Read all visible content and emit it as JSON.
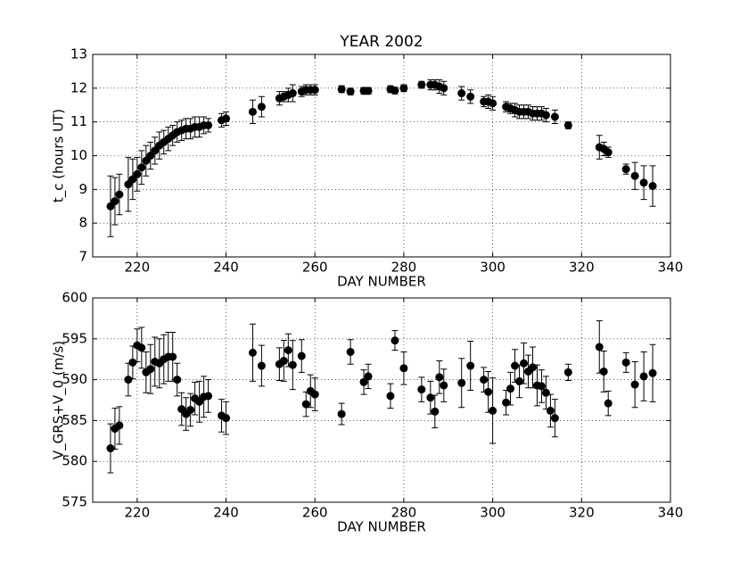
{
  "chart_data": [
    {
      "type": "scatter",
      "title": "YEAR 2002",
      "xlabel": "DAY NUMBER",
      "ylabel": "t_c (hours UT)",
      "xlim": [
        210,
        340
      ],
      "xticks": [
        220,
        240,
        260,
        280,
        300,
        320,
        340
      ],
      "ylim": [
        7,
        13
      ],
      "yticks": [
        7,
        8,
        9,
        10,
        11,
        12,
        13
      ],
      "grid": true,
      "color": "#000000",
      "x": [
        214,
        215,
        216,
        218,
        219,
        220,
        221,
        222,
        223,
        224,
        225,
        226,
        227,
        228,
        229,
        230,
        231,
        232,
        233,
        234,
        235,
        236,
        239,
        240,
        246,
        248,
        252,
        253,
        254,
        255,
        257,
        258,
        259,
        260,
        266,
        268,
        271,
        272,
        277,
        278,
        280,
        284,
        286,
        287,
        288,
        289,
        293,
        295,
        298,
        299,
        300,
        303,
        304,
        305,
        306,
        307,
        308,
        309,
        310,
        311,
        312,
        314,
        317,
        324,
        325,
        326,
        330,
        332,
        334,
        336
      ],
      "values": [
        8.5,
        8.65,
        8.85,
        9.15,
        9.3,
        9.45,
        9.65,
        9.85,
        10.0,
        10.15,
        10.3,
        10.4,
        10.5,
        10.6,
        10.7,
        10.75,
        10.8,
        10.8,
        10.85,
        10.85,
        10.9,
        10.9,
        11.05,
        11.1,
        11.3,
        11.45,
        11.7,
        11.75,
        11.8,
        11.85,
        11.9,
        11.95,
        11.95,
        11.95,
        11.97,
        11.9,
        11.92,
        11.92,
        11.97,
        11.93,
        12.0,
        12.1,
        12.1,
        12.1,
        12.05,
        12.0,
        11.85,
        11.75,
        11.6,
        11.6,
        11.55,
        11.45,
        11.4,
        11.35,
        11.3,
        11.3,
        11.3,
        11.25,
        11.25,
        11.25,
        11.2,
        11.15,
        10.9,
        10.25,
        10.2,
        10.1,
        9.6,
        9.4,
        9.2,
        9.1
      ],
      "errors": [
        0.9,
        0.7,
        0.6,
        0.8,
        0.6,
        0.5,
        0.5,
        0.45,
        0.4,
        0.4,
        0.4,
        0.35,
        0.35,
        0.3,
        0.3,
        0.3,
        0.3,
        0.3,
        0.3,
        0.3,
        0.25,
        0.2,
        0.2,
        0.2,
        0.35,
        0.3,
        0.2,
        0.15,
        0.2,
        0.25,
        0.15,
        0.15,
        0.15,
        0.15,
        0.1,
        0.1,
        0.1,
        0.1,
        0.1,
        0.1,
        0.1,
        0.1,
        0.15,
        0.15,
        0.2,
        0.2,
        0.2,
        0.2,
        0.15,
        0.2,
        0.2,
        0.15,
        0.15,
        0.2,
        0.2,
        0.2,
        0.2,
        0.2,
        0.2,
        0.2,
        0.2,
        0.2,
        0.1,
        0.35,
        0.2,
        0.15,
        0.15,
        0.4,
        0.5,
        0.6
      ]
    },
    {
      "type": "scatter",
      "xlabel": "DAY NUMBER",
      "ylabel": "V_GRS+V_0 (m/s)",
      "xlim": [
        210,
        340
      ],
      "xticks": [
        220,
        240,
        260,
        280,
        300,
        320,
        340
      ],
      "ylim": [
        575,
        600
      ],
      "yticks": [
        575,
        580,
        585,
        590,
        595,
        600
      ],
      "grid": true,
      "color": "#000000",
      "x": [
        214,
        215,
        216,
        218,
        219,
        220,
        221,
        222,
        223,
        224,
        225,
        226,
        227,
        228,
        229,
        230,
        231,
        232,
        233,
        234,
        235,
        236,
        239,
        240,
        246,
        248,
        252,
        253,
        254,
        255,
        257,
        258,
        259,
        260,
        266,
        268,
        271,
        272,
        277,
        278,
        280,
        284,
        286,
        287,
        288,
        289,
        293,
        295,
        298,
        299,
        300,
        303,
        304,
        305,
        306,
        307,
        308,
        309,
        310,
        311,
        312,
        313,
        314,
        317,
        324,
        325,
        326,
        330,
        332,
        334,
        336
      ],
      "values": [
        581.6,
        584.0,
        584.4,
        590.0,
        592.1,
        594.2,
        593.9,
        590.9,
        591.3,
        592.2,
        592.0,
        592.5,
        592.8,
        592.8,
        590.0,
        586.4,
        585.8,
        586.3,
        587.7,
        587.3,
        587.9,
        588.0,
        585.6,
        585.3,
        593.3,
        591.7,
        591.9,
        592.3,
        593.6,
        591.8,
        592.9,
        587.0,
        588.6,
        588.2,
        585.8,
        593.4,
        589.7,
        590.4,
        588.0,
        594.8,
        591.4,
        588.8,
        587.8,
        586.1,
        590.3,
        589.3,
        589.6,
        591.7,
        590.0,
        588.5,
        586.2,
        587.2,
        588.9,
        591.7,
        589.8,
        592.0,
        591.0,
        591.5,
        589.3,
        589.2,
        588.4,
        586.2,
        585.3,
        590.9,
        594.0,
        591.0,
        587.1,
        592.1,
        589.4,
        590.4,
        590.8
      ],
      "errors": [
        3,
        2.5,
        2.3,
        2,
        2,
        2,
        2.5,
        2.5,
        3,
        3,
        3,
        3,
        3,
        3,
        2,
        2,
        2,
        2,
        2,
        2.5,
        2.5,
        2,
        2,
        2,
        3.5,
        2.5,
        2,
        2.5,
        2,
        3,
        2,
        1.5,
        2,
        2,
        1.3,
        1.5,
        1.5,
        1.5,
        1.5,
        1.2,
        2,
        1.5,
        2,
        2,
        2,
        2,
        3,
        3,
        1.5,
        2.5,
        4,
        1.5,
        2,
        2,
        2,
        2.5,
        2,
        2.5,
        2.5,
        2,
        2,
        2,
        2.3,
        1,
        3.2,
        2.5,
        1.5,
        1.2,
        2.8,
        3,
        3.5
      ]
    }
  ]
}
